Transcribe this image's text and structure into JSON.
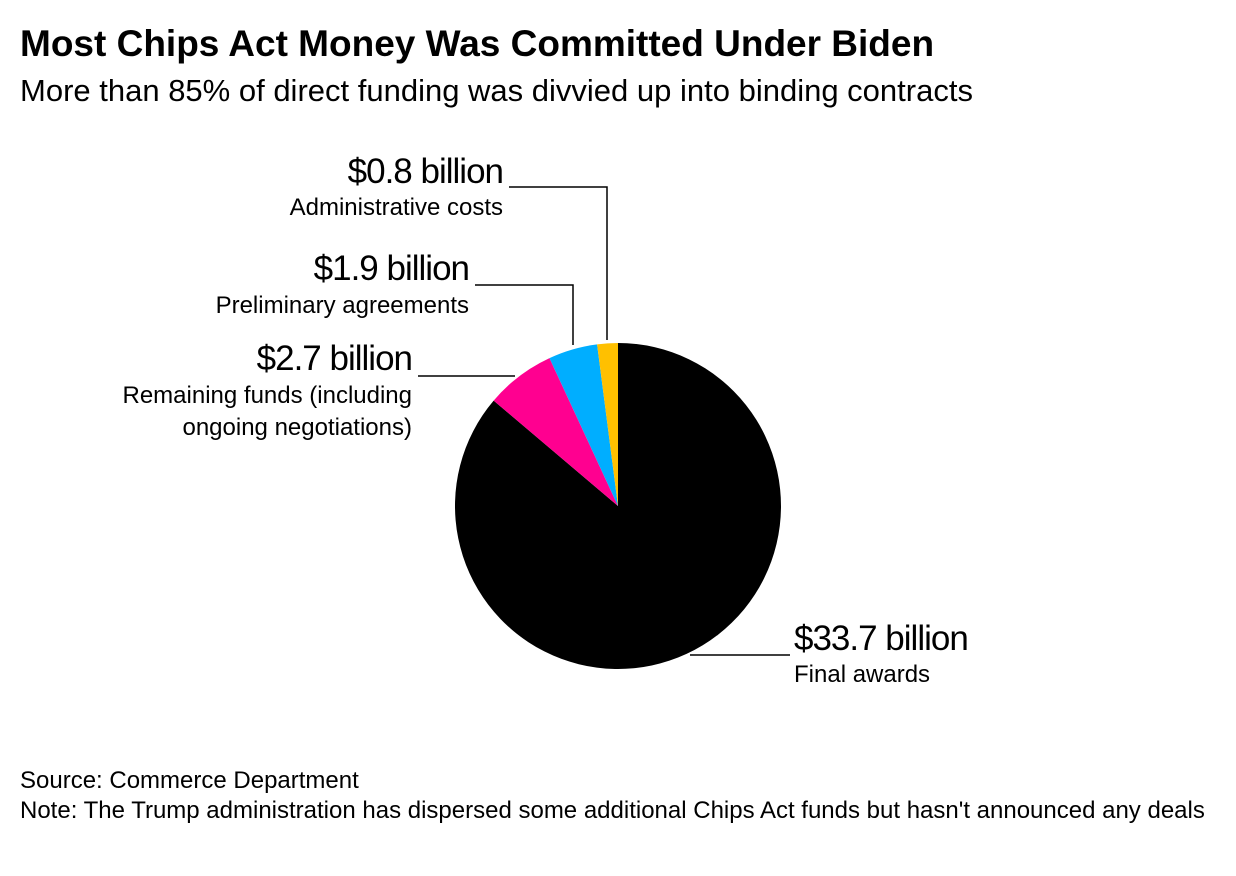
{
  "title": "Most Chips Act Money Was Committed Under Biden",
  "subtitle": "More than 85% of direct funding was divvied up into binding contracts",
  "chart_data": {
    "type": "pie",
    "unit": "billion USD",
    "slices": [
      {
        "label": "Final awards",
        "value": 33.7,
        "value_label": "$33.7 billion",
        "color": "#000000"
      },
      {
        "label": "Remaining funds (including ongoing negotiations)",
        "label_lines": [
          "Remaining funds (including",
          "ongoing negotiations)"
        ],
        "value": 2.7,
        "value_label": "$2.7 billion",
        "color": "#ff0090"
      },
      {
        "label": "Preliminary agreements",
        "value": 1.9,
        "value_label": "$1.9 billion",
        "color": "#00aeff"
      },
      {
        "label": "Administrative costs",
        "value": 0.8,
        "value_label": "$0.8 billion",
        "color": "#ffc000"
      }
    ]
  },
  "footer": {
    "source": "Source: Commerce Department",
    "note": "Note: The Trump administration has dispersed some additional Chips Act funds but hasn't announced any deals"
  }
}
